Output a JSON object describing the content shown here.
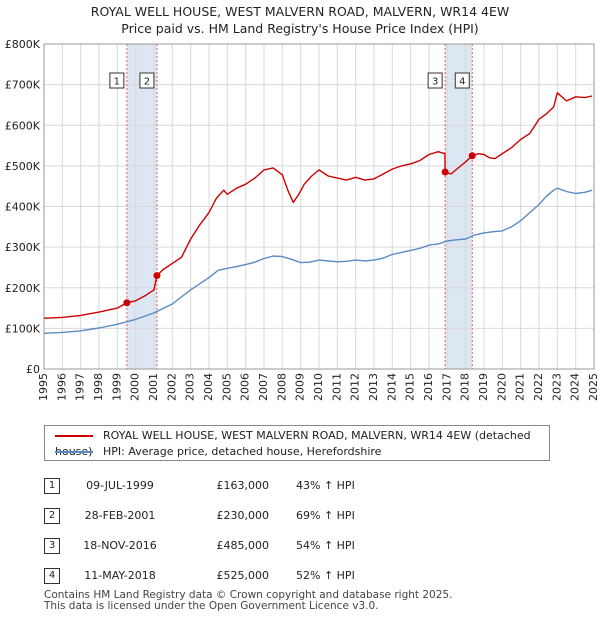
{
  "title": {
    "line1": "ROYAL WELL HOUSE, WEST MALVERN ROAD, MALVERN, WR14 4EW",
    "line2": "Price paid vs. HM Land Registry's House Price Index (HPI)"
  },
  "colors": {
    "property": "#cc0000",
    "hpi": "#5b8ac4",
    "band": "#dde6f3",
    "grid": "#d9d9d9",
    "vline": "#e06060"
  },
  "chart_data": {
    "type": "line",
    "title": "Price paid vs. HM Land Registry's House Price Index (HPI)",
    "xlabel": "",
    "ylabel": "",
    "xlim": [
      1995,
      2025
    ],
    "ylim": [
      0,
      800000
    ],
    "y_ticks": [
      0,
      100000,
      200000,
      300000,
      400000,
      500000,
      600000,
      700000,
      800000
    ],
    "y_tick_labels": [
      "£0",
      "£100K",
      "£200K",
      "£300K",
      "£400K",
      "£500K",
      "£600K",
      "£700K",
      "£800K"
    ],
    "x_ticks": [
      1995,
      1996,
      1997,
      1998,
      1999,
      2000,
      2001,
      2002,
      2003,
      2004,
      2005,
      2006,
      2007,
      2008,
      2009,
      2010,
      2011,
      2012,
      2013,
      2014,
      2015,
      2016,
      2017,
      2018,
      2019,
      2020,
      2021,
      2022,
      2023,
      2024,
      2025
    ],
    "x_tick_labels": [
      "1995",
      "1996",
      "1997",
      "1998",
      "1999",
      "2000",
      "2001",
      "2002",
      "2003",
      "2004",
      "2005",
      "2006",
      "2007",
      "2008",
      "2009",
      "2010",
      "2011",
      "2012",
      "2013",
      "2014",
      "2015",
      "2016",
      "2017",
      "2018",
      "2019",
      "2020",
      "2021",
      "2022",
      "2023",
      "2024",
      "2025"
    ],
    "grid": true,
    "shaded_periods": [
      [
        1999.52,
        2001.16
      ],
      [
        2016.88,
        2018.36
      ]
    ],
    "series": [
      {
        "name": "ROYAL WELL HOUSE, WEST MALVERN ROAD, MALVERN, WR14 4EW (detached house)",
        "x": [
          1995,
          1996,
          1997,
          1998,
          1999,
          1999.52,
          2000,
          2000.5,
          2001,
          2001.16,
          2001.5,
          2002,
          2002.5,
          2003,
          2003.5,
          2004,
          2004.4,
          2004.8,
          2005,
          2005.5,
          2006,
          2006.5,
          2007,
          2007.5,
          2008,
          2008.3,
          2008.6,
          2008.9,
          2009.2,
          2009.6,
          2010,
          2010.5,
          2011,
          2011.5,
          2012,
          2012.5,
          2013,
          2013.5,
          2014,
          2014.5,
          2015,
          2015.5,
          2016,
          2016.5,
          2016.87,
          2016.88,
          2017.2,
          2017.6,
          2018,
          2018.36,
          2018.7,
          2019,
          2019.3,
          2019.6,
          2020,
          2020.5,
          2021,
          2021.5,
          2022,
          2022.4,
          2022.8,
          2023,
          2023.5,
          2024,
          2024.5,
          2024.9
        ],
        "y": [
          125000,
          127000,
          132000,
          140000,
          150000,
          163000,
          168000,
          180000,
          195000,
          230000,
          245000,
          260000,
          275000,
          320000,
          355000,
          385000,
          420000,
          440000,
          430000,
          445000,
          455000,
          470000,
          490000,
          495000,
          478000,
          440000,
          410000,
          430000,
          455000,
          475000,
          490000,
          475000,
          470000,
          465000,
          472000,
          465000,
          468000,
          480000,
          492000,
          500000,
          505000,
          513000,
          528000,
          535000,
          530000,
          485000,
          480000,
          495000,
          510000,
          525000,
          530000,
          528000,
          520000,
          518000,
          530000,
          545000,
          565000,
          580000,
          615000,
          628000,
          645000,
          680000,
          660000,
          670000,
          668000,
          672000
        ],
        "color": "#cc0000"
      },
      {
        "name": "HPI: Average price, detached house, Herefordshire",
        "x": [
          1995,
          1996,
          1997,
          1998,
          1999,
          2000,
          2001,
          2002,
          2003,
          2004,
          2004.5,
          2005,
          2005.5,
          2006,
          2006.5,
          2007,
          2007.5,
          2008,
          2008.5,
          2009,
          2009.5,
          2010,
          2010.5,
          2011,
          2011.5,
          2012,
          2012.5,
          2013,
          2013.5,
          2014,
          2014.5,
          2015,
          2015.5,
          2016,
          2016.5,
          2017,
          2017.5,
          2018,
          2018.5,
          2019,
          2019.5,
          2020,
          2020.5,
          2021,
          2021.5,
          2022,
          2022.4,
          2022.8,
          2023,
          2023.5,
          2024,
          2024.5,
          2024.9
        ],
        "y": [
          88000,
          90000,
          94000,
          101000,
          110000,
          122000,
          138000,
          160000,
          195000,
          225000,
          243000,
          248000,
          252000,
          257000,
          263000,
          272000,
          278000,
          277000,
          270000,
          262000,
          263000,
          268000,
          266000,
          264000,
          265000,
          268000,
          266000,
          268000,
          273000,
          282000,
          287000,
          292000,
          297000,
          305000,
          308000,
          315000,
          318000,
          320000,
          330000,
          335000,
          338000,
          340000,
          350000,
          365000,
          385000,
          405000,
          425000,
          440000,
          445000,
          437000,
          432000,
          435000,
          440000
        ],
        "color": "#5b8ac4"
      }
    ],
    "sales": [
      {
        "label": "1",
        "x": 1999.52,
        "price": 163000
      },
      {
        "label": "2",
        "x": 2001.16,
        "price": 230000
      },
      {
        "label": "3",
        "x": 2016.88,
        "price": 485000
      },
      {
        "label": "4",
        "x": 2018.36,
        "price": 525000
      }
    ]
  },
  "legend": {
    "property": "ROYAL WELL HOUSE, WEST MALVERN ROAD, MALVERN, WR14 4EW (detached house)",
    "hpi": "HPI: Average price, detached house, Herefordshire"
  },
  "transactions": [
    {
      "num": "1",
      "date": "09-JUL-1999",
      "price": "£163,000",
      "hpi": "43% ↑ HPI"
    },
    {
      "num": "2",
      "date": "28-FEB-2001",
      "price": "£230,000",
      "hpi": "69% ↑ HPI"
    },
    {
      "num": "3",
      "date": "18-NOV-2016",
      "price": "£485,000",
      "hpi": "54% ↑ HPI"
    },
    {
      "num": "4",
      "date": "11-MAY-2018",
      "price": "£525,000",
      "hpi": "52% ↑ HPI"
    }
  ],
  "footer": {
    "line1": "Contains HM Land Registry data © Crown copyright and database right 2025.",
    "line2": "This data is licensed under the Open Government Licence v3.0."
  }
}
